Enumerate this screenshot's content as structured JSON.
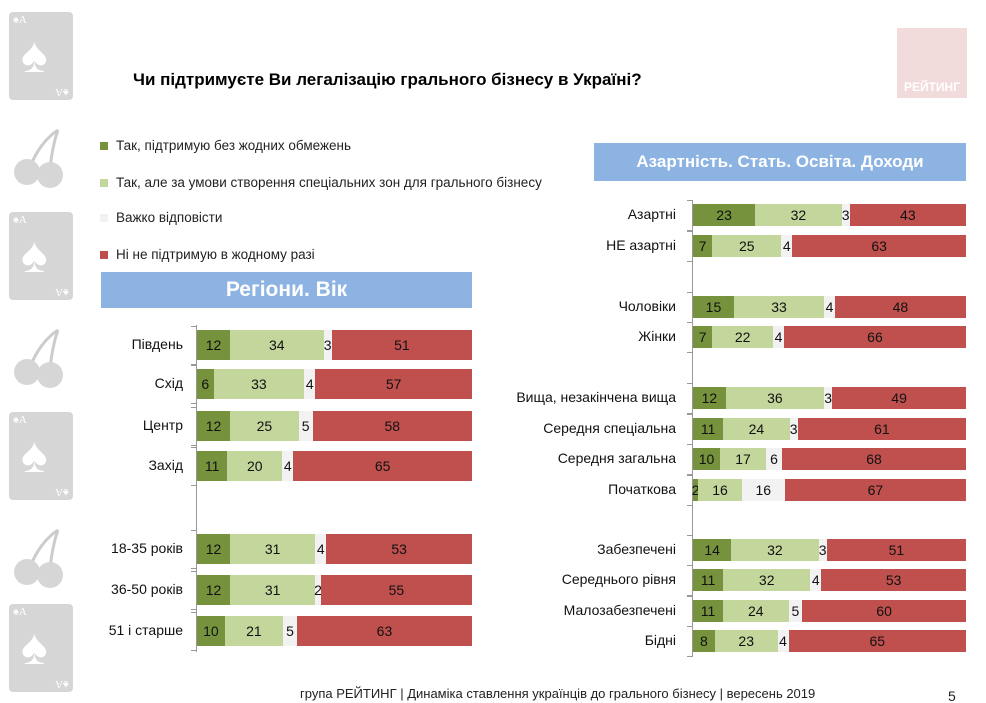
{
  "title": "Чи підтримуєте Ви легалізацію грального бізнесу в Україні?",
  "logo_text": "РЕЙТИНГ",
  "legend": [
    {
      "label": "Так, підтримую без жодних обмежень",
      "color": "#76923c"
    },
    {
      "label": "Так, але за умови створення спеціальних зон для грального бізнесу",
      "color": "#c3d69b"
    },
    {
      "label": "Важко відповісти",
      "color": "#f2f2f2"
    },
    {
      "label": "Ні не підтримую в жодному разі",
      "color": "#c0504d"
    }
  ],
  "footer": "група РЕЙТИНГ  |  Динаміка ставлення українців до грального бізнесу  |  вересень 2019",
  "page_number": "5",
  "chart_data": [
    {
      "type": "bar",
      "orientation": "horizontal",
      "stacked": true,
      "title": "Регіони. Вік",
      "categories": [
        "Південь",
        "Схід",
        "Центр",
        "Захід",
        "18-35 років",
        "36-50 років",
        "51 і старше"
      ],
      "groups": [
        [
          0,
          1,
          2,
          3
        ],
        [
          4,
          5,
          6
        ]
      ],
      "series": [
        {
          "name": "Так, підтримую без жодних обмежень",
          "values": [
            12,
            6,
            12,
            11,
            12,
            12,
            10
          ]
        },
        {
          "name": "Так, але за умови створення спеціальних зон для грального бізнесу",
          "values": [
            34,
            33,
            25,
            20,
            31,
            31,
            21
          ]
        },
        {
          "name": "Важко відповісти",
          "values": [
            3,
            4,
            5,
            4,
            4,
            2,
            5
          ]
        },
        {
          "name": "Ні не підтримую в жодному разі",
          "values": [
            51,
            57,
            58,
            65,
            53,
            55,
            63
          ]
        }
      ]
    },
    {
      "type": "bar",
      "orientation": "horizontal",
      "stacked": true,
      "title": "Азартність. Стать. Освіта. Доходи",
      "categories": [
        "Азартні",
        "НЕ азартні",
        "Чоловіки",
        "Жінки",
        "Вища, незакінчена вища",
        "Середня спеціальна",
        "Середня загальна",
        "Початкова",
        "Забезпечені",
        "Середнього рівня",
        "Малозабезпечені",
        "Бідні"
      ],
      "groups": [
        [
          0,
          1
        ],
        [
          2,
          3
        ],
        [
          4,
          5,
          6,
          7
        ],
        [
          8,
          9,
          10,
          11
        ]
      ],
      "series": [
        {
          "name": "Так, підтримую без жодних обмежень",
          "values": [
            23,
            7,
            15,
            7,
            12,
            11,
            10,
            2,
            14,
            11,
            11,
            8
          ]
        },
        {
          "name": "Так, але за умови створення спеціальних зон для грального бізнесу",
          "values": [
            32,
            25,
            33,
            22,
            36,
            24,
            17,
            16,
            32,
            32,
            24,
            23
          ]
        },
        {
          "name": "Важко відповісти",
          "values": [
            3,
            4,
            4,
            4,
            3,
            3,
            6,
            16,
            3,
            4,
            5,
            4
          ]
        },
        {
          "name": "Ні не підтримую в жодному разі",
          "values": [
            43,
            63,
            48,
            66,
            49,
            61,
            68,
            67,
            51,
            53,
            60,
            65
          ]
        }
      ]
    }
  ]
}
